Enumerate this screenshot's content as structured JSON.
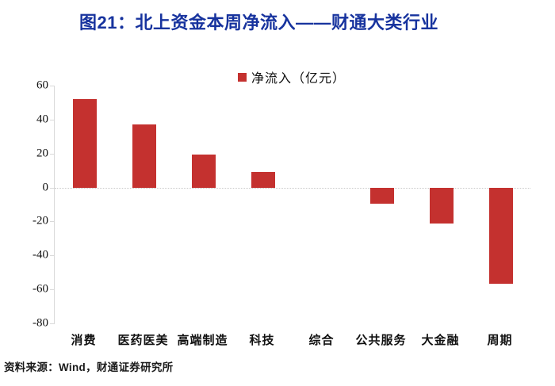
{
  "title": "图21：北上资金本周净流入——财通大类行业",
  "legend": {
    "label": "净流入（亿元）"
  },
  "footer": {
    "source_label": "资料来源：Wind，财通证券研究所"
  },
  "colors": {
    "title_blue": "#17339e",
    "bar_red": "#c4312f",
    "axis_gray": "#d9d9d9",
    "text_black": "#111111"
  },
  "chart_data": {
    "type": "bar",
    "title": "北上资金本周净流入——财通大类行业",
    "categories": [
      "消费",
      "医药医美",
      "高端制造",
      "科技",
      "综合",
      "公共服务",
      "大金融",
      "周期"
    ],
    "series": [
      {
        "name": "净流入（亿元）",
        "values": [
          52,
          37,
          19.5,
          9,
          0,
          -9.5,
          -21,
          -56.5
        ]
      }
    ],
    "xlabel": "",
    "ylabel": "",
    "ylim": [
      -80,
      60
    ],
    "yticks": [
      60,
      40,
      20,
      0,
      -20,
      -40,
      -60,
      -80
    ],
    "grid": "zero-line-only",
    "legend_position": "top-center",
    "bar_color": "#c4312f"
  }
}
